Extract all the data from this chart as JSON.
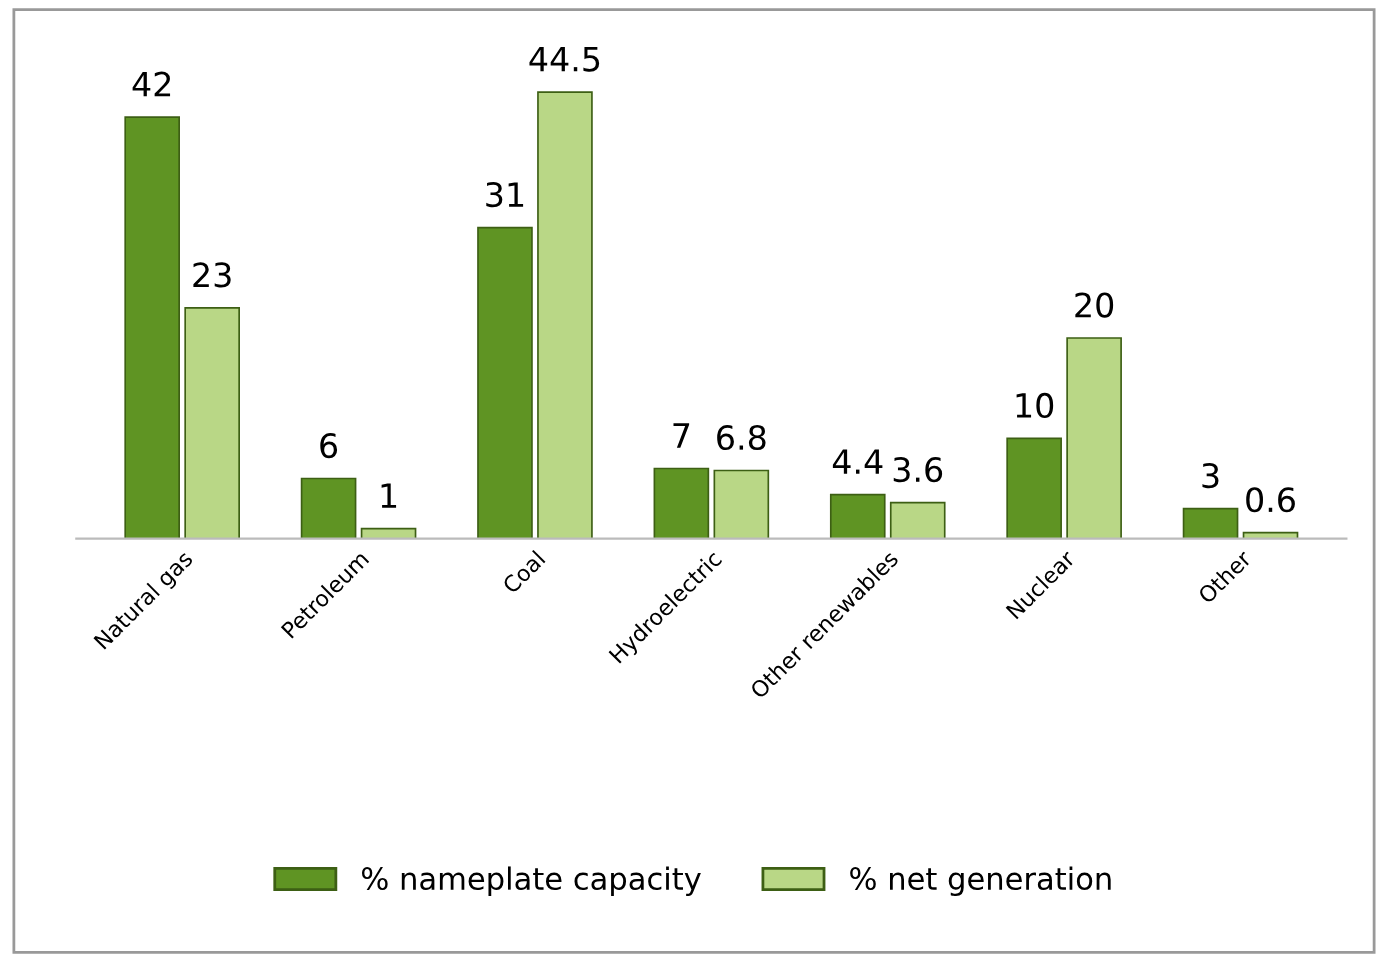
{
  "chart_data": {
    "type": "bar",
    "categories": [
      "Natural gas",
      "Petroleum",
      "Coal",
      "Hydroelectric",
      "Other renewables",
      "Nuclear",
      "Other"
    ],
    "series": [
      {
        "name": "% nameplate capacity",
        "color": "#5f9423",
        "values": [
          42,
          6,
          31,
          7,
          4.4,
          10,
          3
        ]
      },
      {
        "name": "% net generation",
        "color": "#b9d786",
        "values": [
          23,
          1,
          44.5,
          6.8,
          3.6,
          20,
          0.6
        ]
      }
    ],
    "data_labels": true,
    "legend": "bottom",
    "grid": false,
    "tick_labels": "x"
  }
}
